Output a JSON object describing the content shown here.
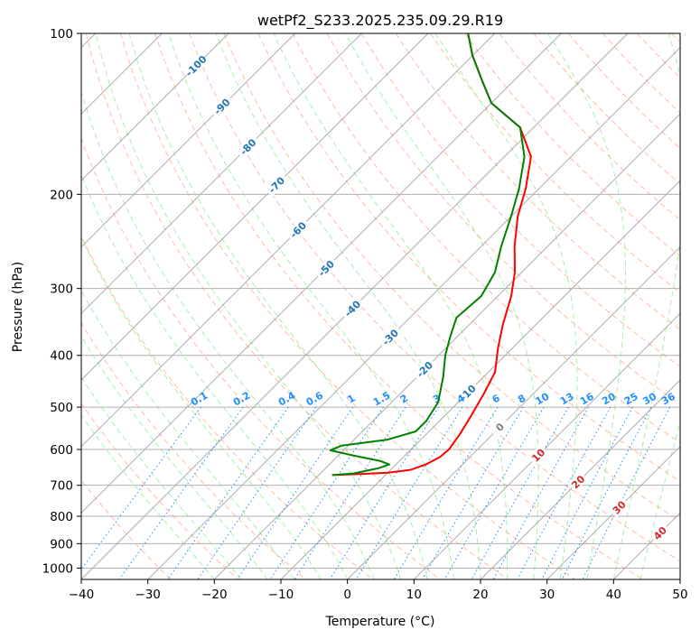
{
  "chart_data": {
    "type": "line",
    "subtype": "skew-T log-p diagram",
    "title": "wetPf2_S233.2025.235.09.29.R19",
    "xlabel": "Temperature (°C)",
    "ylabel": "Pressure (hPa)",
    "xlim": [
      -40,
      50
    ],
    "ylim": [
      1050,
      100
    ],
    "y_scale": "log",
    "grid": true,
    "x_ticks": [
      -40,
      -30,
      -20,
      -10,
      0,
      10,
      20,
      30,
      40,
      50
    ],
    "y_ticks": [
      100,
      200,
      300,
      400,
      500,
      600,
      700,
      800,
      900,
      1000
    ],
    "series": [
      {
        "color": "#ff0000",
        "points": [
          [
            -18,
            670
          ],
          [
            -14,
            667
          ],
          [
            -10,
            663
          ],
          [
            -7,
            655
          ],
          [
            -5.5,
            640
          ],
          [
            -4.5,
            620
          ],
          [
            -4.3,
            600
          ],
          [
            -5,
            560
          ],
          [
            -6,
            520
          ],
          [
            -7.5,
            470
          ],
          [
            -9,
            430
          ],
          [
            -12,
            390
          ],
          [
            -15,
            350
          ],
          [
            -18,
            310
          ],
          [
            -21,
            280
          ],
          [
            -25,
            250
          ],
          [
            -29,
            220
          ],
          [
            -32,
            195
          ],
          [
            -36,
            170
          ],
          [
            -42,
            150
          ],
          [
            -50,
            135
          ],
          [
            -55,
            122
          ],
          [
            -60,
            110
          ],
          [
            -64,
            100
          ]
        ]
      },
      {
        "color": "#008000",
        "points": [
          [
            -18,
            670
          ],
          [
            -15,
            665
          ],
          [
            -12,
            650
          ],
          [
            -11,
            640
          ],
          [
            -13,
            630
          ],
          [
            -18,
            615
          ],
          [
            -22,
            602
          ],
          [
            -21,
            590
          ],
          [
            -15,
            575
          ],
          [
            -12,
            555
          ],
          [
            -12,
            530
          ],
          [
            -13,
            490
          ],
          [
            -16,
            440
          ],
          [
            -19,
            400
          ],
          [
            -21,
            370
          ],
          [
            -23,
            340
          ],
          [
            -22.5,
            310
          ],
          [
            -24,
            280
          ],
          [
            -27,
            250
          ],
          [
            -30,
            220
          ],
          [
            -33,
            195
          ],
          [
            -37,
            170
          ],
          [
            -42,
            150
          ],
          [
            -50,
            135
          ],
          [
            -55,
            122
          ],
          [
            -60,
            110
          ],
          [
            -64,
            100
          ]
        ]
      }
    ],
    "isotherm_labels": [
      "-100",
      "-90",
      "-80",
      "-70",
      "-60",
      "-50",
      "-40",
      "-30",
      "-20",
      "-10"
    ],
    "mixing_ratio_labels": [
      "0.1",
      "0.2",
      "0.4",
      "0.6",
      "1",
      "1.5",
      "2",
      "3",
      "4",
      "6",
      "8",
      "10",
      "13",
      "16",
      "20",
      "25",
      "30",
      "36"
    ],
    "isotherm_labels_red": [
      "0",
      "10",
      "20",
      "30",
      "40"
    ],
    "colors": {
      "temperature": "#ff0000",
      "dewpoint": "#008000",
      "isotherm_negative_label": "#1f77b4",
      "isotherm_positive_label": "#d62728",
      "zero_isotherm_label": "#7f7f7f",
      "mixing_ratio": "#1e90ff",
      "dry_adiabat": "#ffa07a",
      "moist_adiabat": "#90ee90",
      "isotherm_grid": "#999999"
    }
  }
}
